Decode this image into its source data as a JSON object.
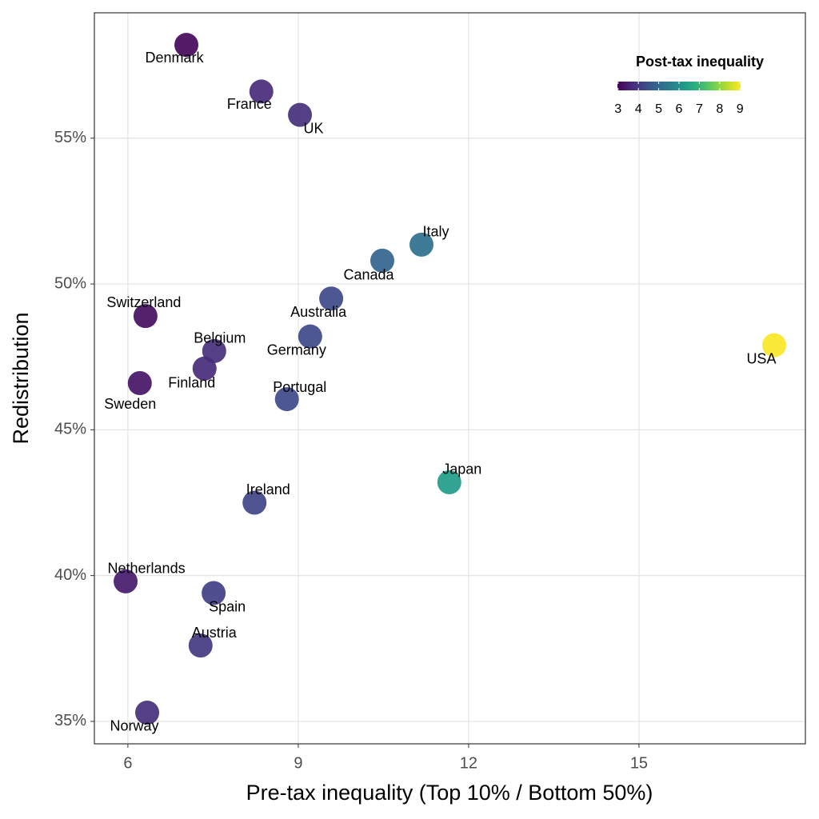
{
  "chart_data": {
    "type": "scatter",
    "x_label": "Pre-tax inequality (Top 10% / Bottom 50%)",
    "y_label": "Redistribution",
    "xlim": [
      5.41,
      17.93
    ],
    "ylim": [
      34.23,
      59.3
    ],
    "xticks": [
      6,
      9,
      12,
      15
    ],
    "yticks": [
      {
        "value": 35,
        "label": "35%"
      },
      {
        "value": 40,
        "label": "40%"
      },
      {
        "value": 45,
        "label": "45%"
      },
      {
        "value": 50,
        "label": "50%"
      },
      {
        "value": 55,
        "label": "55%"
      }
    ],
    "grid": true,
    "colormap": "viridis",
    "color_title": "Post-tax inequality",
    "clim": [
      2.97,
      9.03
    ],
    "color_ticks": [
      3,
      4,
      5,
      6,
      7,
      8,
      9
    ],
    "legend_position": "top-right",
    "labels": [
      "Denmark",
      "France",
      "UK",
      "Italy",
      "Canada",
      "Australia",
      "Switzerland",
      "USA",
      "Germany",
      "Belgium",
      "Finland",
      "Sweden",
      "Portugal",
      "Japan",
      "Ireland",
      "Netherlands",
      "Spain",
      "Austria",
      "Norway"
    ],
    "x": [
      7.03,
      8.35,
      9.03,
      11.17,
      10.48,
      9.58,
      6.31,
      17.38,
      9.21,
      7.52,
      7.35,
      6.21,
      8.8,
      11.66,
      8.23,
      5.96,
      7.51,
      7.28,
      6.34
    ],
    "y": [
      58.2,
      56.6,
      55.8,
      51.35,
      50.8,
      49.5,
      48.9,
      47.9,
      48.2,
      47.7,
      47.1,
      46.6,
      46.05,
      43.2,
      42.5,
      39.8,
      39.4,
      37.6,
      35.3
    ],
    "color_values": [
      3.1,
      3.7,
      3.8,
      5.2,
      4.9,
      4.3,
      3.2,
      9,
      4.3,
      3.8,
      3.7,
      3.3,
      4.3,
      6.3,
      4.2,
      3.4,
      4.1,
      4.0,
      3.8
    ]
  }
}
